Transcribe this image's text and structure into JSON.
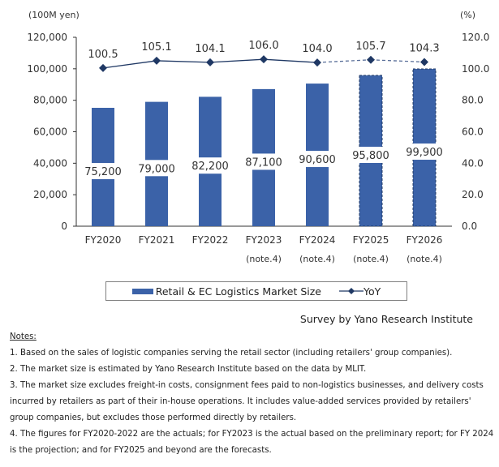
{
  "chart_data": {
    "type": "bar+line",
    "categories": [
      [
        "FY2020",
        ""
      ],
      [
        "FY2021",
        ""
      ],
      [
        "FY2022",
        ""
      ],
      [
        "FY2023",
        "(note.4)"
      ],
      [
        "FY2024",
        "(note.4)"
      ],
      [
        "FY2025",
        "(note.4)"
      ],
      [
        "FY2026",
        "(note.4)"
      ]
    ],
    "left_unit": "(100M yen)",
    "right_unit": "(%)",
    "left_ticks": [
      "0",
      "20,000",
      "40,000",
      "60,000",
      "80,000",
      "100,000",
      "120,000"
    ],
    "right_ticks": [
      "0.0",
      "20.0",
      "40.0",
      "60.0",
      "80.0",
      "100.0",
      "120.0"
    ],
    "ylim_left": [
      0,
      120000
    ],
    "ylim_right": [
      0,
      120
    ],
    "series": [
      {
        "name": "Retail & EC Logistics Market Size",
        "type": "bar",
        "color": "#3b62a8",
        "values": [
          75200,
          79000,
          82200,
          87100,
          90600,
          95800,
          99900
        ],
        "labels": [
          "75,200",
          "79,000",
          "82,200",
          "87,100",
          "90,600",
          "95,800",
          "99,900"
        ],
        "dashed_border_from_index": 5
      },
      {
        "name": "YoY",
        "type": "line",
        "color": "#1f3864",
        "values": [
          100.5,
          105.1,
          104.1,
          106.0,
          104.0,
          105.7,
          104.3
        ],
        "labels": [
          "100.5",
          "105.1",
          "104.1",
          "106.0",
          "104.0",
          "105.7",
          "104.3"
        ],
        "dashed_from_index": 4
      }
    ],
    "legend_position": "bottom",
    "grid": false
  },
  "source": "Survey by Yano Research Institute",
  "notes": {
    "heading": "Notes:",
    "items": [
      "1. Based on the sales of logistic companies serving the retail sector (including retailers' group companies).",
      "2. The market size is estimated by Yano Research Institute based on the data by MLIT.",
      "3. The market size excludes freight-in costs, consignment fees paid to non-logistics businesses, and delivery costs incurred by retailers as part of their in-house operations. It includes value-added services provided by retailers' group companies, but excludes those performed directly by retailers.",
      "4. The figures for FY2020-2022 are the actuals; for FY2023 is the actual based on the preliminary report;  for FY 2024 is the projection; and for FY2025 and beyond are the forecasts."
    ]
  }
}
